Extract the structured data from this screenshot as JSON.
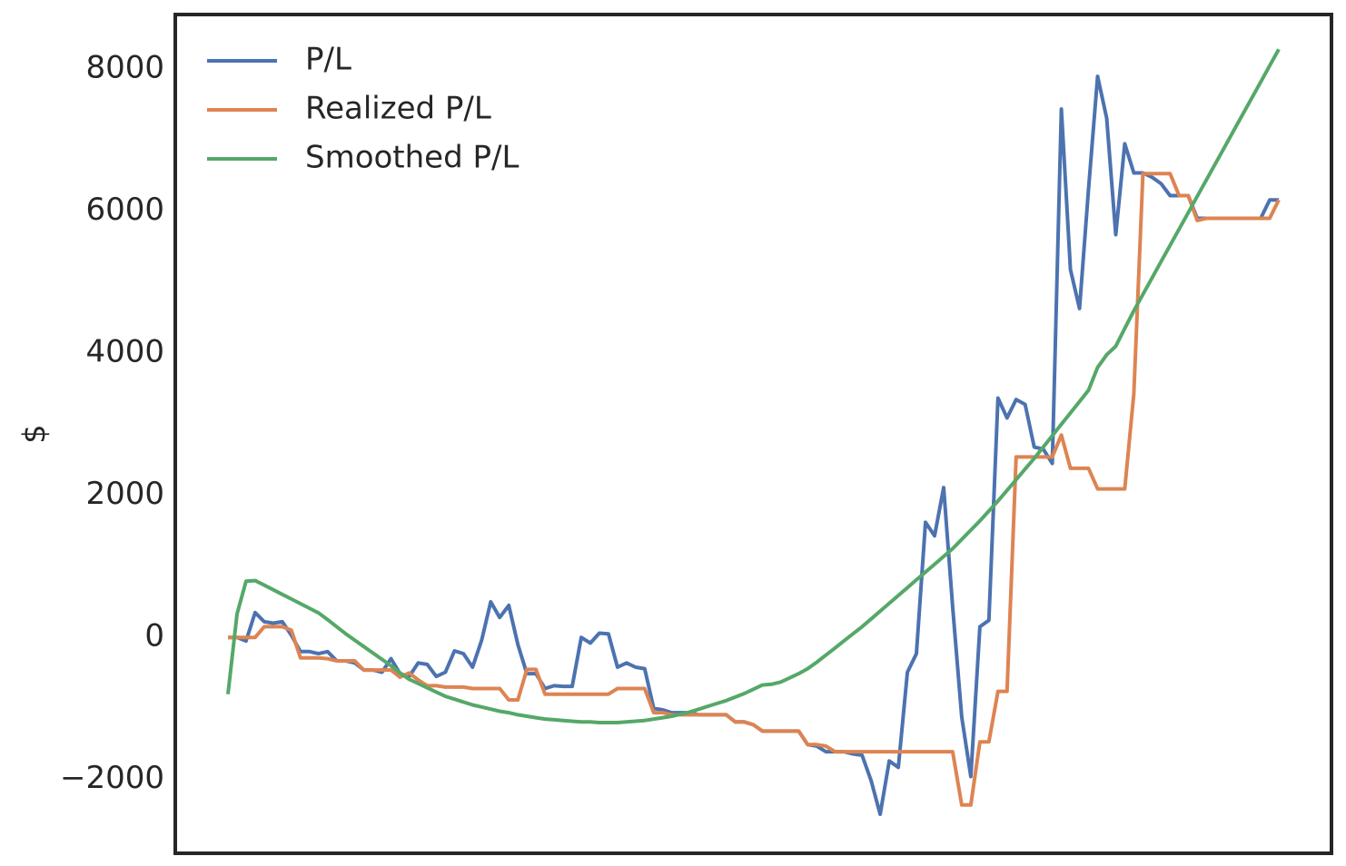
{
  "chart_data": {
    "type": "line",
    "ylabel": "$",
    "ylim": [
      -3040,
      8770
    ],
    "yticks": [
      {
        "value": -2000,
        "label": "−2000"
      },
      0,
      2000,
      4000,
      6000,
      8000
    ],
    "legend": "upper left",
    "grid": false,
    "series": [
      {
        "name": "P/L",
        "color": "#4c72b0",
        "values": [
          0,
          0,
          -50,
          350,
          220,
          200,
          220,
          30,
          -200,
          -200,
          -230,
          -200,
          -330,
          -330,
          -360,
          -460,
          -460,
          -490,
          -300,
          -510,
          -550,
          -360,
          -380,
          -550,
          -490,
          -190,
          -230,
          -420,
          -40,
          500,
          280,
          450,
          -100,
          -510,
          -510,
          -720,
          -680,
          -690,
          -690,
          0,
          -80,
          60,
          50,
          -420,
          -360,
          -420,
          -440,
          -1000,
          -1020,
          -1060,
          -1060,
          -1060,
          -1090,
          -1090,
          -1090,
          -1090,
          -1190,
          -1190,
          -1230,
          -1320,
          -1320,
          -1320,
          -1320,
          -1320,
          -1510,
          -1530,
          -1610,
          -1610,
          -1610,
          -1640,
          -1660,
          -2020,
          -2490,
          -1740,
          -1830,
          -490,
          -230,
          1620,
          1430,
          2110,
          430,
          -1120,
          -1960,
          150,
          240,
          3370,
          3090,
          3350,
          3280,
          2680,
          2650,
          2450,
          7440,
          5180,
          4630,
          6310,
          7900,
          7310,
          5670,
          6950,
          6540,
          6540,
          6480,
          6390,
          6220,
          6220,
          6220,
          5900,
          5900,
          5900,
          5900,
          5900,
          5900,
          5900,
          5900,
          6160,
          6160
        ]
      },
      {
        "name": "Realized P/L",
        "color": "#dd8452",
        "values": [
          0,
          0,
          0,
          0,
          150,
          150,
          150,
          100,
          -290,
          -290,
          -290,
          -300,
          -330,
          -330,
          -330,
          -460,
          -460,
          -460,
          -460,
          -560,
          -500,
          -600,
          -680,
          -680,
          -700,
          -700,
          -700,
          -720,
          -720,
          -720,
          -720,
          -880,
          -880,
          -450,
          -450,
          -800,
          -800,
          -800,
          -800,
          -800,
          -800,
          -800,
          -800,
          -720,
          -720,
          -720,
          -720,
          -1060,
          -1060,
          -1090,
          -1090,
          -1090,
          -1090,
          -1090,
          -1090,
          -1090,
          -1190,
          -1190,
          -1230,
          -1320,
          -1320,
          -1320,
          -1320,
          -1320,
          -1510,
          -1510,
          -1530,
          -1610,
          -1610,
          -1610,
          -1610,
          -1610,
          -1610,
          -1610,
          -1610,
          -1610,
          -1610,
          -1610,
          -1610,
          -1610,
          -1610,
          -2360,
          -2360,
          -1470,
          -1470,
          -760,
          -760,
          2540,
          2540,
          2540,
          2540,
          2540,
          2850,
          2380,
          2380,
          2380,
          2090,
          2090,
          2090,
          2090,
          3430,
          6530,
          6530,
          6530,
          6530,
          6220,
          6220,
          5870,
          5900,
          5900,
          5900,
          5900,
          5900,
          5900,
          5900,
          5900,
          6160
        ]
      },
      {
        "name": "Smoothed P/L",
        "color": "#55a868",
        "values": [
          -800,
          330,
          790,
          800,
          735,
          670,
          605,
          540,
          475,
          410,
          345,
          250,
          150,
          50,
          -40,
          -130,
          -220,
          -310,
          -400,
          -500,
          -590,
          -650,
          -710,
          -770,
          -830,
          -870,
          -910,
          -950,
          -980,
          -1010,
          -1040,
          -1060,
          -1090,
          -1110,
          -1130,
          -1150,
          -1160,
          -1170,
          -1180,
          -1190,
          -1190,
          -1200,
          -1200,
          -1200,
          -1190,
          -1180,
          -1170,
          -1150,
          -1130,
          -1110,
          -1080,
          -1050,
          -1010,
          -970,
          -930,
          -890,
          -840,
          -790,
          -730,
          -670,
          -660,
          -630,
          -570,
          -510,
          -440,
          -350,
          -250,
          -150,
          -50,
          50,
          150,
          260,
          370,
          480,
          590,
          700,
          810,
          920,
          1030,
          1140,
          1250,
          1380,
          1510,
          1640,
          1780,
          1920,
          2070,
          2220,
          2370,
          2520,
          2680,
          2840,
          3000,
          3160,
          3320,
          3480,
          3800,
          3980,
          4100,
          4350,
          4600,
          4830,
          5060,
          5290,
          5520,
          5750,
          5980,
          6210,
          6440,
          6670,
          6900,
          7130,
          7360,
          7590,
          7820,
          8050,
          8280
        ]
      }
    ]
  }
}
